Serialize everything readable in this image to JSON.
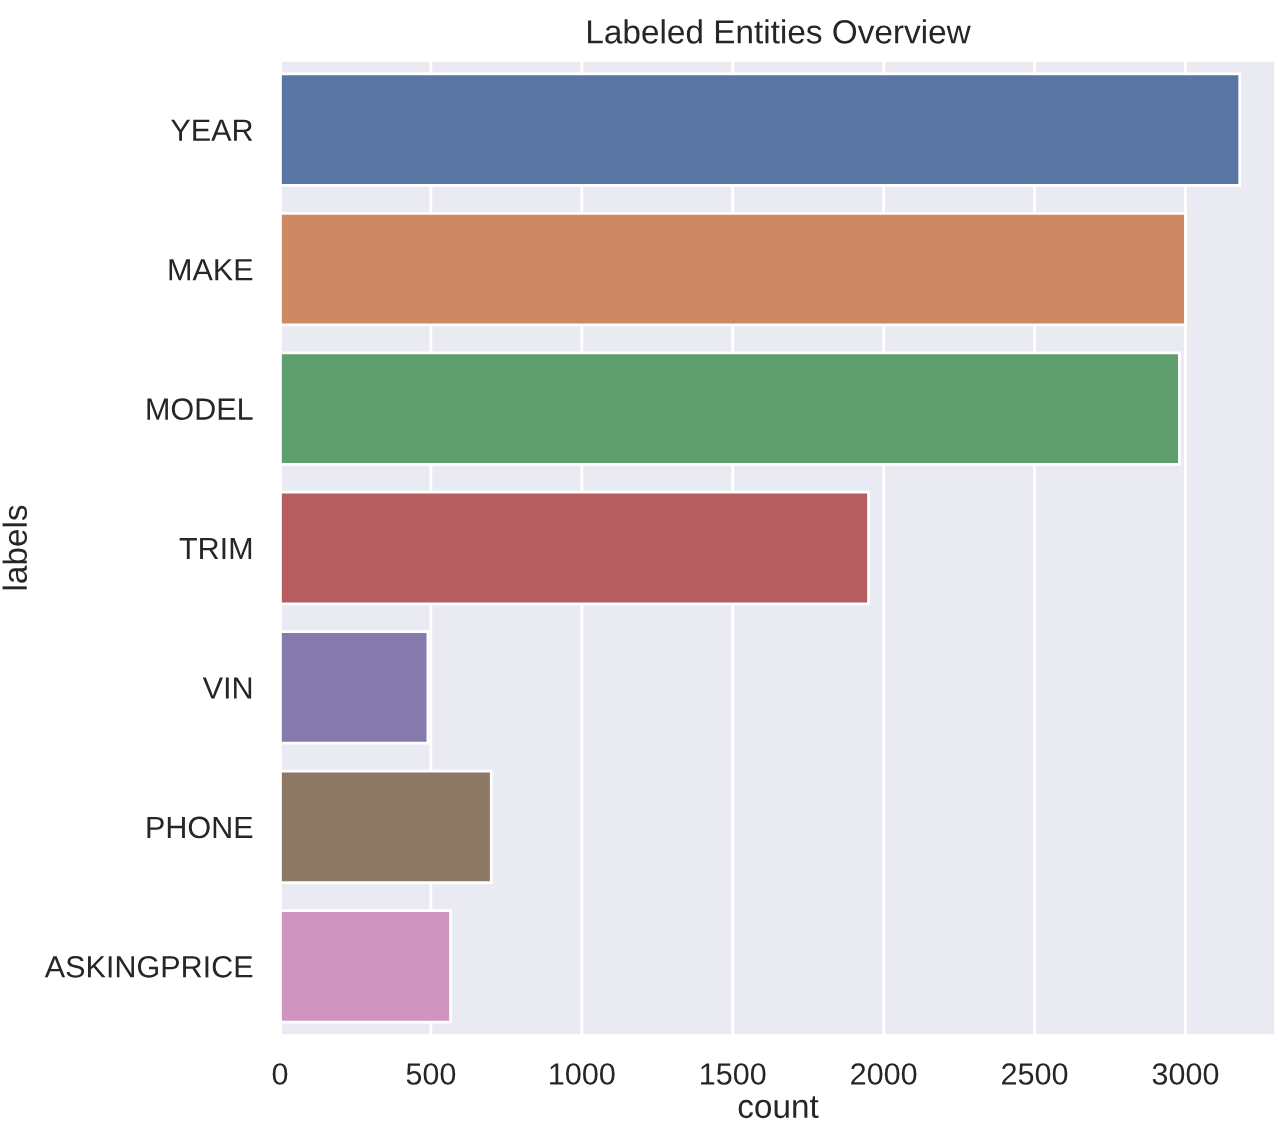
{
  "chart_data": {
    "type": "bar",
    "orientation": "horizontal",
    "title": "Labeled Entities Overview",
    "xlabel": "count",
    "ylabel": "labels",
    "categories": [
      "YEAR",
      "MAKE",
      "MODEL",
      "TRIM",
      "VIN",
      "PHONE",
      "ASKINGPRICE"
    ],
    "values": [
      3180,
      3000,
      2980,
      1950,
      490,
      700,
      565
    ],
    "colors": [
      "#5975a4",
      "#cc8963",
      "#5f9e6e",
      "#b55d60",
      "#857aab",
      "#8d7866",
      "#d095bf"
    ],
    "xlim": [
      0,
      3300
    ],
    "xticks": [
      0,
      500,
      1000,
      1500,
      2000,
      2500,
      3000
    ],
    "grid": "x",
    "legend": false
  }
}
